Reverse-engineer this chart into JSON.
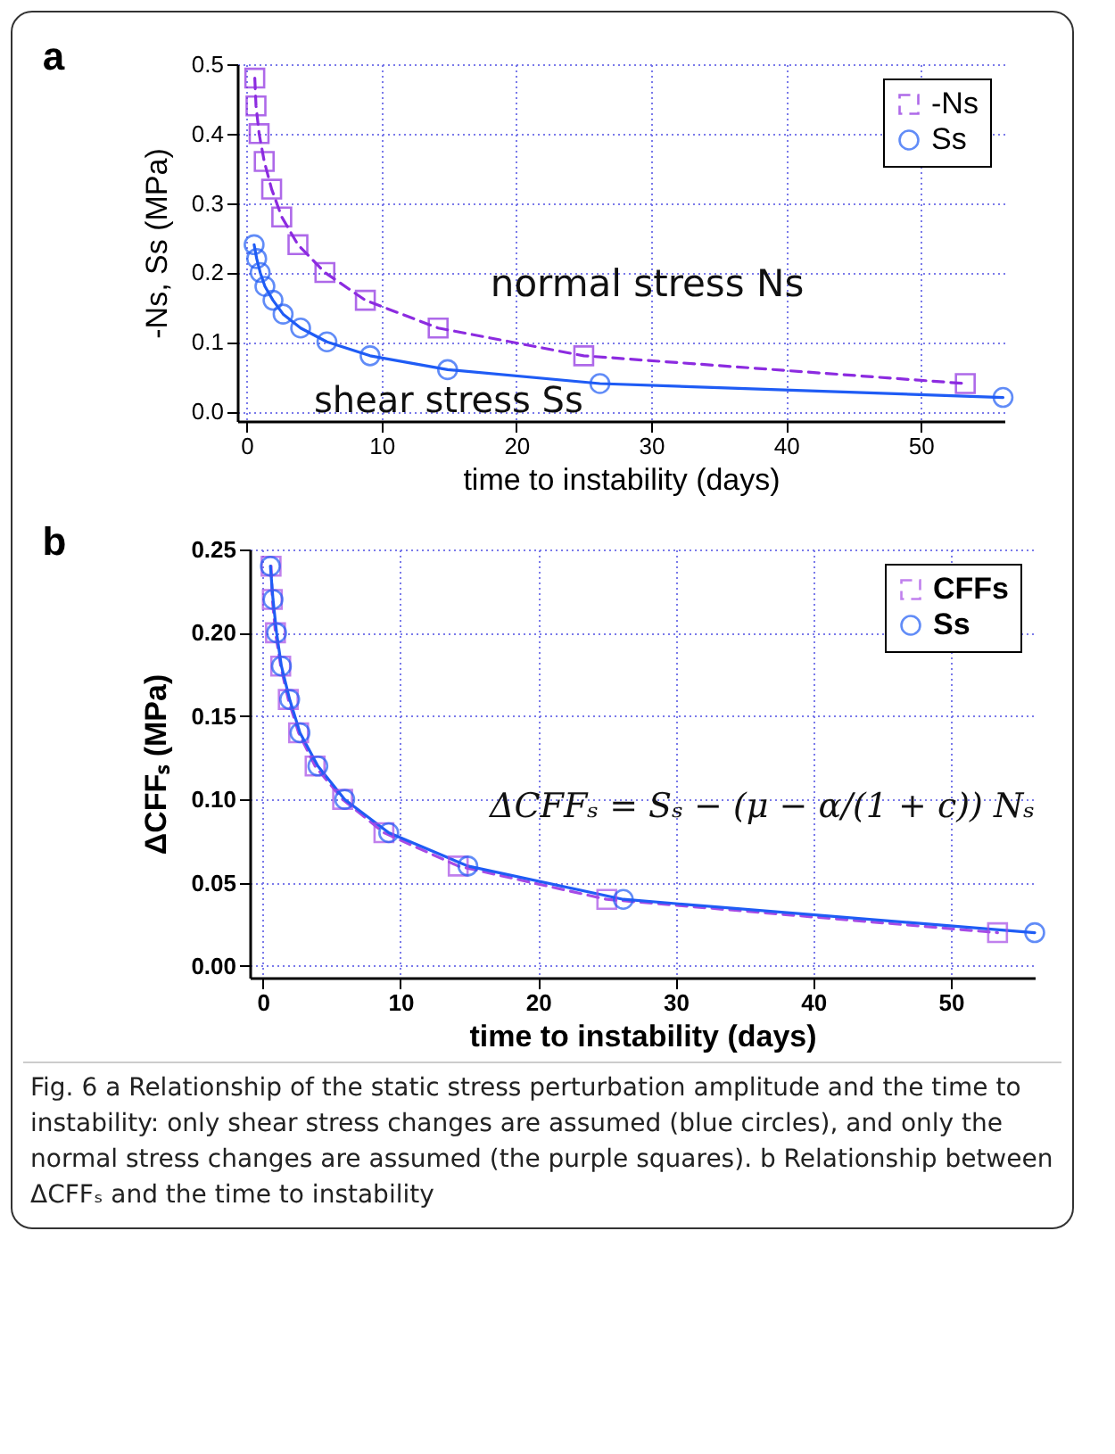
{
  "chart_data": [
    {
      "type": "line",
      "title": "a",
      "xlabel": "time to instability (days)",
      "ylabel": "-Ns, Ss (MPa)",
      "xlim": [
        -0.7,
        56.2
      ],
      "ylim": [
        -0.014,
        0.5
      ],
      "xticks": [
        0,
        10,
        20,
        30,
        40,
        50
      ],
      "yticks": [
        {
          "value": 0,
          "label": "0.0"
        },
        0.1,
        0.2,
        0.3,
        0.4,
        0.5
      ],
      "grid": true,
      "legend": "top right",
      "series": [
        {
          "name": "-Ns",
          "color": "#8c2be0",
          "marker": "square",
          "line_style": "dashed",
          "x": [
            0.6,
            0.69,
            0.92,
            1.3,
            1.85,
            2.6,
            3.8,
            5.8,
            8.8,
            14.2,
            25.0,
            53.3
          ],
          "values": [
            0.48,
            0.44,
            0.4,
            0.36,
            0.32,
            0.28,
            0.24,
            0.2,
            0.16,
            0.12,
            0.08,
            0.04
          ]
        },
        {
          "name": "Ss",
          "color": "#1f5cf5",
          "marker": "circle",
          "line_style": "solid",
          "x": [
            0.55,
            0.74,
            1.0,
            1.35,
            1.95,
            2.7,
            4.0,
            5.95,
            9.15,
            14.9,
            26.2,
            56.1
          ],
          "values": [
            0.24,
            0.22,
            0.2,
            0.18,
            0.16,
            0.14,
            0.12,
            0.1,
            0.08,
            0.06,
            0.04,
            0.02
          ]
        }
      ],
      "annotations": [
        "normal stress Ns",
        "shear stress Ss"
      ]
    },
    {
      "type": "line",
      "title": "b",
      "xlabel": "time to instability (days)",
      "ylabel": "ΔCFFₛ (MPa)",
      "xlim": [
        -0.95,
        56.1
      ],
      "ylim": [
        -0.007,
        0.25
      ],
      "xticks": [
        0,
        10,
        20,
        30,
        40,
        50
      ],
      "yticks": [
        {
          "value": 0,
          "label": "0.00"
        },
        0.05,
        {
          "value": 0.1,
          "label": "0.10"
        },
        0.15,
        {
          "value": 0.2,
          "label": "0.20"
        },
        0.25
      ],
      "grid": true,
      "legend": "top right",
      "series": [
        {
          "name": "CFFs",
          "color": "#a64be6",
          "marker": "square",
          "line_style": "dashed",
          "x": [
            0.6,
            0.69,
            0.92,
            1.3,
            1.85,
            2.6,
            3.8,
            5.8,
            8.8,
            14.2,
            25.0,
            53.4
          ],
          "values": [
            0.24,
            0.22,
            0.2,
            0.18,
            0.16,
            0.14,
            0.12,
            0.1,
            0.08,
            0.06,
            0.04,
            0.02
          ]
        },
        {
          "name": "Ss",
          "color": "#1f5cf5",
          "marker": "circle",
          "line_style": "solid",
          "x": [
            0.55,
            0.74,
            1.0,
            1.35,
            1.95,
            2.7,
            4.0,
            5.95,
            9.15,
            14.9,
            26.2,
            56.1
          ],
          "values": [
            0.24,
            0.22,
            0.2,
            0.18,
            0.16,
            0.14,
            0.12,
            0.1,
            0.08,
            0.06,
            0.04,
            0.02
          ]
        }
      ],
      "annotations": [
        "ΔCFFₛ = Sₛ − (μ − α/(1 + c)) Nₛ",
        "Fig. 6 a Relationship of the static stress perturbation amplitude and the time to instability: only shear stress changes are assumed (blue circles), and only the normal stress changes are assumed (the purple squares). b Relationship between ΔCFFₛ and the time to instability"
      ]
    }
  ]
}
